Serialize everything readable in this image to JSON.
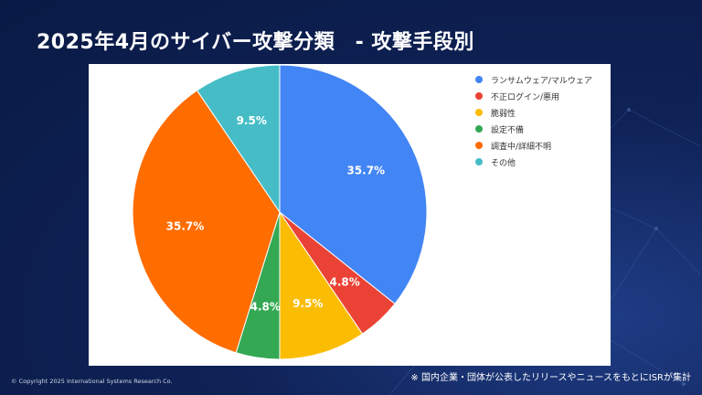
{
  "header": {
    "title": "2025年4月のサイバー攻撃分類　- 攻撃手段別"
  },
  "chart_data": {
    "type": "pie",
    "title": "",
    "slices": [
      {
        "label": "ランサムウェア/マルウェア",
        "value": 35.7,
        "display": "35.7%",
        "color": "#4285f4"
      },
      {
        "label": "不正ログイン/悪用",
        "value": 4.8,
        "display": "4.8%",
        "color": "#ea4335"
      },
      {
        "label": "脆弱性",
        "value": 9.5,
        "display": "9.5%",
        "color": "#fbbc04"
      },
      {
        "label": "設定不備",
        "value": 4.8,
        "display": "4.8%",
        "color": "#34a853"
      },
      {
        "label": "調査中/詳細不明",
        "value": 35.7,
        "display": "35.7%",
        "color": "#ff6d01"
      },
      {
        "label": "その他",
        "value": 9.5,
        "display": "9.5%",
        "color": "#46bdc6"
      }
    ],
    "legend_position": "top-right"
  },
  "footer": {
    "copyright": "© Copyright 2025 International Systems Research Co.",
    "note": "※ 国内企業・団体が公表したリリースやニュースをもとにISRが集計"
  }
}
